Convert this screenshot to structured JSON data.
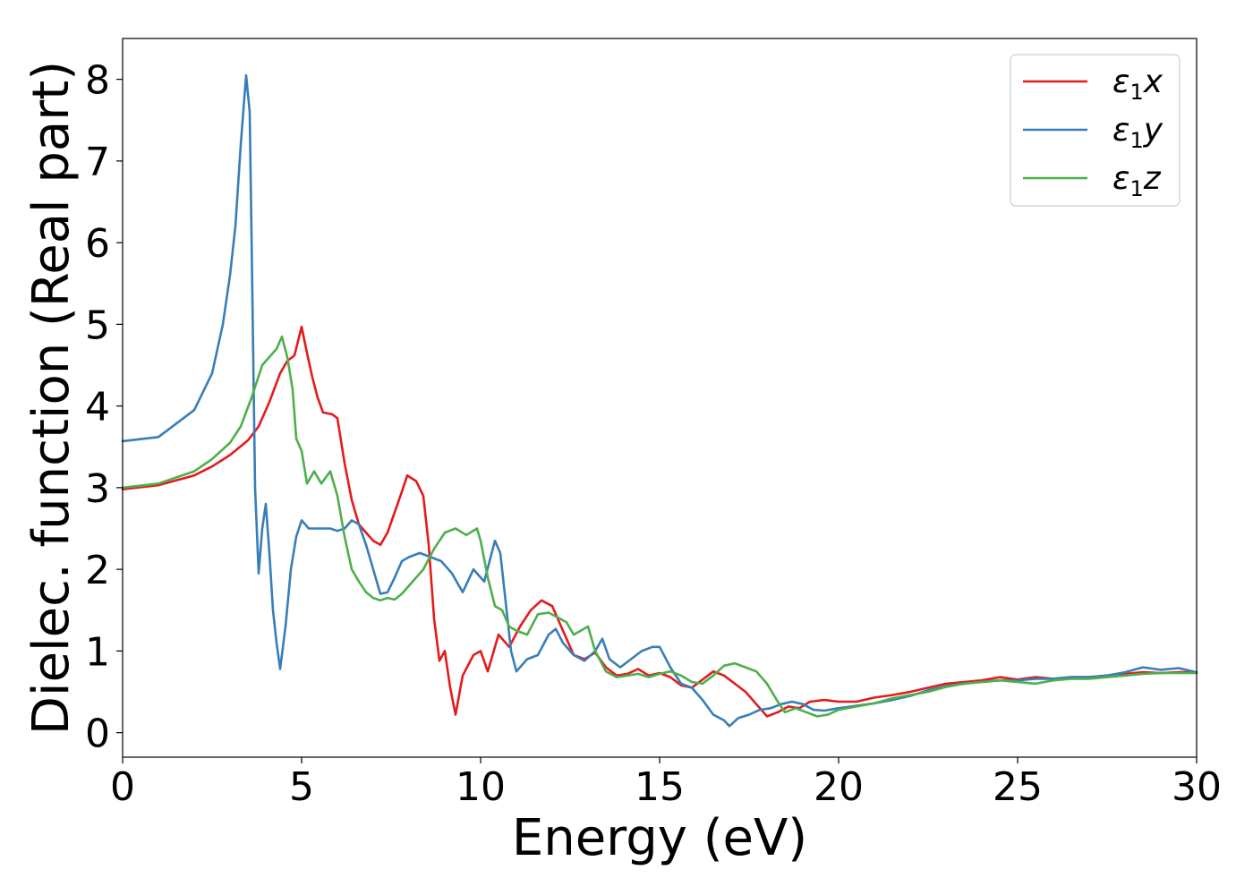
{
  "chart_data": {
    "type": "line",
    "title": "",
    "xlabel": "Energy (eV)",
    "ylabel": "Dielec. function (Real part)",
    "xlim": [
      0,
      30
    ],
    "ylim": [
      -0.3,
      8.5
    ],
    "xticks": [
      "0",
      "5",
      "10",
      "15",
      "20",
      "25",
      "30"
    ],
    "yticks": [
      "0",
      "1",
      "2",
      "3",
      "4",
      "5",
      "6",
      "7",
      "8"
    ],
    "grid": false,
    "legend_position": "top-right",
    "series": [
      {
        "name": "ε1x",
        "base": "ε",
        "sub": "1",
        "axis": "x",
        "color": "#e41a1c",
        "points": [
          [
            0,
            2.98
          ],
          [
            1,
            3.03
          ],
          [
            2,
            3.15
          ],
          [
            2.5,
            3.26
          ],
          [
            3,
            3.4
          ],
          [
            3.5,
            3.58
          ],
          [
            3.8,
            3.75
          ],
          [
            4.1,
            4.05
          ],
          [
            4.4,
            4.4
          ],
          [
            4.6,
            4.55
          ],
          [
            4.8,
            4.62
          ],
          [
            5.0,
            4.97
          ],
          [
            5.15,
            4.65
          ],
          [
            5.3,
            4.35
          ],
          [
            5.45,
            4.1
          ],
          [
            5.6,
            3.92
          ],
          [
            5.85,
            3.9
          ],
          [
            6.0,
            3.85
          ],
          [
            6.2,
            3.3
          ],
          [
            6.4,
            2.85
          ],
          [
            6.6,
            2.55
          ],
          [
            6.8,
            2.45
          ],
          [
            7.0,
            2.35
          ],
          [
            7.2,
            2.3
          ],
          [
            7.4,
            2.45
          ],
          [
            7.6,
            2.7
          ],
          [
            7.8,
            2.95
          ],
          [
            7.95,
            3.15
          ],
          [
            8.2,
            3.08
          ],
          [
            8.4,
            2.9
          ],
          [
            8.55,
            2.3
          ],
          [
            8.7,
            1.4
          ],
          [
            8.85,
            0.88
          ],
          [
            9.0,
            1.0
          ],
          [
            9.15,
            0.55
          ],
          [
            9.3,
            0.22
          ],
          [
            9.5,
            0.7
          ],
          [
            9.8,
            0.95
          ],
          [
            10.0,
            1.0
          ],
          [
            10.2,
            0.75
          ],
          [
            10.5,
            1.2
          ],
          [
            10.8,
            1.05
          ],
          [
            11.1,
            1.3
          ],
          [
            11.4,
            1.5
          ],
          [
            11.7,
            1.62
          ],
          [
            12.0,
            1.55
          ],
          [
            12.3,
            1.25
          ],
          [
            12.6,
            0.95
          ],
          [
            12.9,
            0.9
          ],
          [
            13.2,
            0.98
          ],
          [
            13.5,
            0.8
          ],
          [
            13.8,
            0.7
          ],
          [
            14.1,
            0.72
          ],
          [
            14.4,
            0.78
          ],
          [
            14.7,
            0.7
          ],
          [
            15.0,
            0.73
          ],
          [
            15.3,
            0.68
          ],
          [
            15.6,
            0.58
          ],
          [
            15.9,
            0.55
          ],
          [
            16.2,
            0.65
          ],
          [
            16.5,
            0.75
          ],
          [
            16.8,
            0.7
          ],
          [
            17.1,
            0.6
          ],
          [
            17.4,
            0.5
          ],
          [
            17.7,
            0.35
          ],
          [
            18.0,
            0.2
          ],
          [
            18.3,
            0.25
          ],
          [
            18.6,
            0.32
          ],
          [
            18.9,
            0.3
          ],
          [
            19.2,
            0.38
          ],
          [
            19.6,
            0.4
          ],
          [
            20.0,
            0.38
          ],
          [
            20.5,
            0.38
          ],
          [
            21,
            0.43
          ],
          [
            21.5,
            0.46
          ],
          [
            22,
            0.5
          ],
          [
            22.5,
            0.55
          ],
          [
            23,
            0.6
          ],
          [
            23.5,
            0.62
          ],
          [
            24,
            0.64
          ],
          [
            24.5,
            0.68
          ],
          [
            25,
            0.65
          ],
          [
            25.5,
            0.68
          ],
          [
            26,
            0.66
          ],
          [
            26.5,
            0.68
          ],
          [
            27,
            0.68
          ],
          [
            27.5,
            0.7
          ],
          [
            28,
            0.72
          ],
          [
            28.5,
            0.74
          ],
          [
            29,
            0.73
          ],
          [
            29.5,
            0.74
          ],
          [
            30,
            0.74
          ]
        ]
      },
      {
        "name": "ε1y",
        "base": "ε",
        "sub": "1",
        "axis": "y",
        "color": "#377eb8",
        "points": [
          [
            0,
            3.57
          ],
          [
            1,
            3.62
          ],
          [
            2,
            3.95
          ],
          [
            2.5,
            4.4
          ],
          [
            2.8,
            5.0
          ],
          [
            3.0,
            5.6
          ],
          [
            3.15,
            6.2
          ],
          [
            3.3,
            7.2
          ],
          [
            3.45,
            8.05
          ],
          [
            3.55,
            7.6
          ],
          [
            3.62,
            5.5
          ],
          [
            3.7,
            3.0
          ],
          [
            3.8,
            1.95
          ],
          [
            3.9,
            2.5
          ],
          [
            4.0,
            2.8
          ],
          [
            4.1,
            2.2
          ],
          [
            4.2,
            1.5
          ],
          [
            4.3,
            1.1
          ],
          [
            4.4,
            0.78
          ],
          [
            4.55,
            1.3
          ],
          [
            4.7,
            2.0
          ],
          [
            4.85,
            2.4
          ],
          [
            5.0,
            2.6
          ],
          [
            5.2,
            2.5
          ],
          [
            5.5,
            2.5
          ],
          [
            5.8,
            2.5
          ],
          [
            6.0,
            2.47
          ],
          [
            6.2,
            2.5
          ],
          [
            6.4,
            2.6
          ],
          [
            6.6,
            2.55
          ],
          [
            6.8,
            2.3
          ],
          [
            7.0,
            2.0
          ],
          [
            7.2,
            1.7
          ],
          [
            7.4,
            1.72
          ],
          [
            7.6,
            1.9
          ],
          [
            7.8,
            2.1
          ],
          [
            8.0,
            2.15
          ],
          [
            8.3,
            2.2
          ],
          [
            8.6,
            2.15
          ],
          [
            8.9,
            2.1
          ],
          [
            9.2,
            1.95
          ],
          [
            9.5,
            1.72
          ],
          [
            9.8,
            2.0
          ],
          [
            10.1,
            1.85
          ],
          [
            10.4,
            2.35
          ],
          [
            10.55,
            2.2
          ],
          [
            10.7,
            1.6
          ],
          [
            10.85,
            1.0
          ],
          [
            11.0,
            0.75
          ],
          [
            11.3,
            0.9
          ],
          [
            11.6,
            0.95
          ],
          [
            11.9,
            1.2
          ],
          [
            12.1,
            1.27
          ],
          [
            12.3,
            1.1
          ],
          [
            12.6,
            0.95
          ],
          [
            12.9,
            0.88
          ],
          [
            13.2,
            1.0
          ],
          [
            13.4,
            1.15
          ],
          [
            13.6,
            0.9
          ],
          [
            13.9,
            0.8
          ],
          [
            14.2,
            0.9
          ],
          [
            14.5,
            1.0
          ],
          [
            14.8,
            1.05
          ],
          [
            15.0,
            1.05
          ],
          [
            15.3,
            0.8
          ],
          [
            15.6,
            0.6
          ],
          [
            15.9,
            0.55
          ],
          [
            16.2,
            0.4
          ],
          [
            16.5,
            0.22
          ],
          [
            16.8,
            0.15
          ],
          [
            16.95,
            0.08
          ],
          [
            17.2,
            0.18
          ],
          [
            17.5,
            0.22
          ],
          [
            17.8,
            0.28
          ],
          [
            18.1,
            0.3
          ],
          [
            18.4,
            0.35
          ],
          [
            18.7,
            0.38
          ],
          [
            19.0,
            0.35
          ],
          [
            19.3,
            0.28
          ],
          [
            19.6,
            0.27
          ],
          [
            20,
            0.3
          ],
          [
            20.5,
            0.33
          ],
          [
            21,
            0.36
          ],
          [
            21.5,
            0.4
          ],
          [
            22,
            0.45
          ],
          [
            22.5,
            0.52
          ],
          [
            23,
            0.57
          ],
          [
            23.5,
            0.6
          ],
          [
            24,
            0.62
          ],
          [
            24.5,
            0.64
          ],
          [
            25,
            0.64
          ],
          [
            25.5,
            0.66
          ],
          [
            26,
            0.66
          ],
          [
            26.5,
            0.68
          ],
          [
            27,
            0.68
          ],
          [
            27.5,
            0.7
          ],
          [
            28,
            0.74
          ],
          [
            28.5,
            0.8
          ],
          [
            29,
            0.77
          ],
          [
            29.5,
            0.79
          ],
          [
            30,
            0.74
          ]
        ]
      },
      {
        "name": "ε1z",
        "base": "ε",
        "sub": "1",
        "axis": "z",
        "color": "#4daf4a",
        "points": [
          [
            0,
            3.0
          ],
          [
            1,
            3.05
          ],
          [
            2,
            3.2
          ],
          [
            2.5,
            3.35
          ],
          [
            3,
            3.55
          ],
          [
            3.3,
            3.75
          ],
          [
            3.6,
            4.1
          ],
          [
            3.9,
            4.5
          ],
          [
            4.1,
            4.6
          ],
          [
            4.3,
            4.7
          ],
          [
            4.45,
            4.85
          ],
          [
            4.6,
            4.6
          ],
          [
            4.75,
            4.2
          ],
          [
            4.85,
            3.6
          ],
          [
            5.0,
            3.45
          ],
          [
            5.15,
            3.05
          ],
          [
            5.35,
            3.2
          ],
          [
            5.55,
            3.05
          ],
          [
            5.8,
            3.2
          ],
          [
            6.0,
            2.9
          ],
          [
            6.2,
            2.4
          ],
          [
            6.4,
            2.0
          ],
          [
            6.6,
            1.85
          ],
          [
            6.8,
            1.72
          ],
          [
            7.0,
            1.65
          ],
          [
            7.2,
            1.62
          ],
          [
            7.4,
            1.65
          ],
          [
            7.6,
            1.63
          ],
          [
            7.8,
            1.7
          ],
          [
            8.0,
            1.8
          ],
          [
            8.2,
            1.9
          ],
          [
            8.4,
            2.0
          ],
          [
            8.7,
            2.25
          ],
          [
            9.0,
            2.45
          ],
          [
            9.3,
            2.5
          ],
          [
            9.6,
            2.42
          ],
          [
            9.9,
            2.5
          ],
          [
            10.0,
            2.35
          ],
          [
            10.2,
            1.9
          ],
          [
            10.4,
            1.55
          ],
          [
            10.6,
            1.5
          ],
          [
            10.8,
            1.3
          ],
          [
            11.0,
            1.25
          ],
          [
            11.3,
            1.2
          ],
          [
            11.6,
            1.45
          ],
          [
            11.9,
            1.47
          ],
          [
            12.2,
            1.4
          ],
          [
            12.4,
            1.35
          ],
          [
            12.6,
            1.2
          ],
          [
            12.8,
            1.25
          ],
          [
            13.0,
            1.3
          ],
          [
            13.2,
            1.0
          ],
          [
            13.5,
            0.75
          ],
          [
            13.8,
            0.68
          ],
          [
            14.1,
            0.7
          ],
          [
            14.4,
            0.72
          ],
          [
            14.7,
            0.68
          ],
          [
            15.0,
            0.72
          ],
          [
            15.3,
            0.75
          ],
          [
            15.6,
            0.7
          ],
          [
            15.9,
            0.62
          ],
          [
            16.2,
            0.6
          ],
          [
            16.5,
            0.7
          ],
          [
            16.8,
            0.82
          ],
          [
            17.1,
            0.85
          ],
          [
            17.4,
            0.8
          ],
          [
            17.7,
            0.75
          ],
          [
            18.0,
            0.6
          ],
          [
            18.3,
            0.38
          ],
          [
            18.5,
            0.25
          ],
          [
            18.8,
            0.3
          ],
          [
            19.1,
            0.25
          ],
          [
            19.4,
            0.2
          ],
          [
            19.7,
            0.22
          ],
          [
            20,
            0.28
          ],
          [
            20.5,
            0.32
          ],
          [
            21,
            0.36
          ],
          [
            21.5,
            0.42
          ],
          [
            22,
            0.46
          ],
          [
            22.5,
            0.5
          ],
          [
            23,
            0.56
          ],
          [
            23.5,
            0.6
          ],
          [
            24,
            0.62
          ],
          [
            24.5,
            0.64
          ],
          [
            25,
            0.62
          ],
          [
            25.5,
            0.6
          ],
          [
            26,
            0.64
          ],
          [
            26.5,
            0.66
          ],
          [
            27,
            0.66
          ],
          [
            27.5,
            0.68
          ],
          [
            28,
            0.7
          ],
          [
            28.5,
            0.72
          ],
          [
            29,
            0.73
          ],
          [
            29.5,
            0.73
          ],
          [
            30,
            0.73
          ]
        ]
      }
    ]
  }
}
